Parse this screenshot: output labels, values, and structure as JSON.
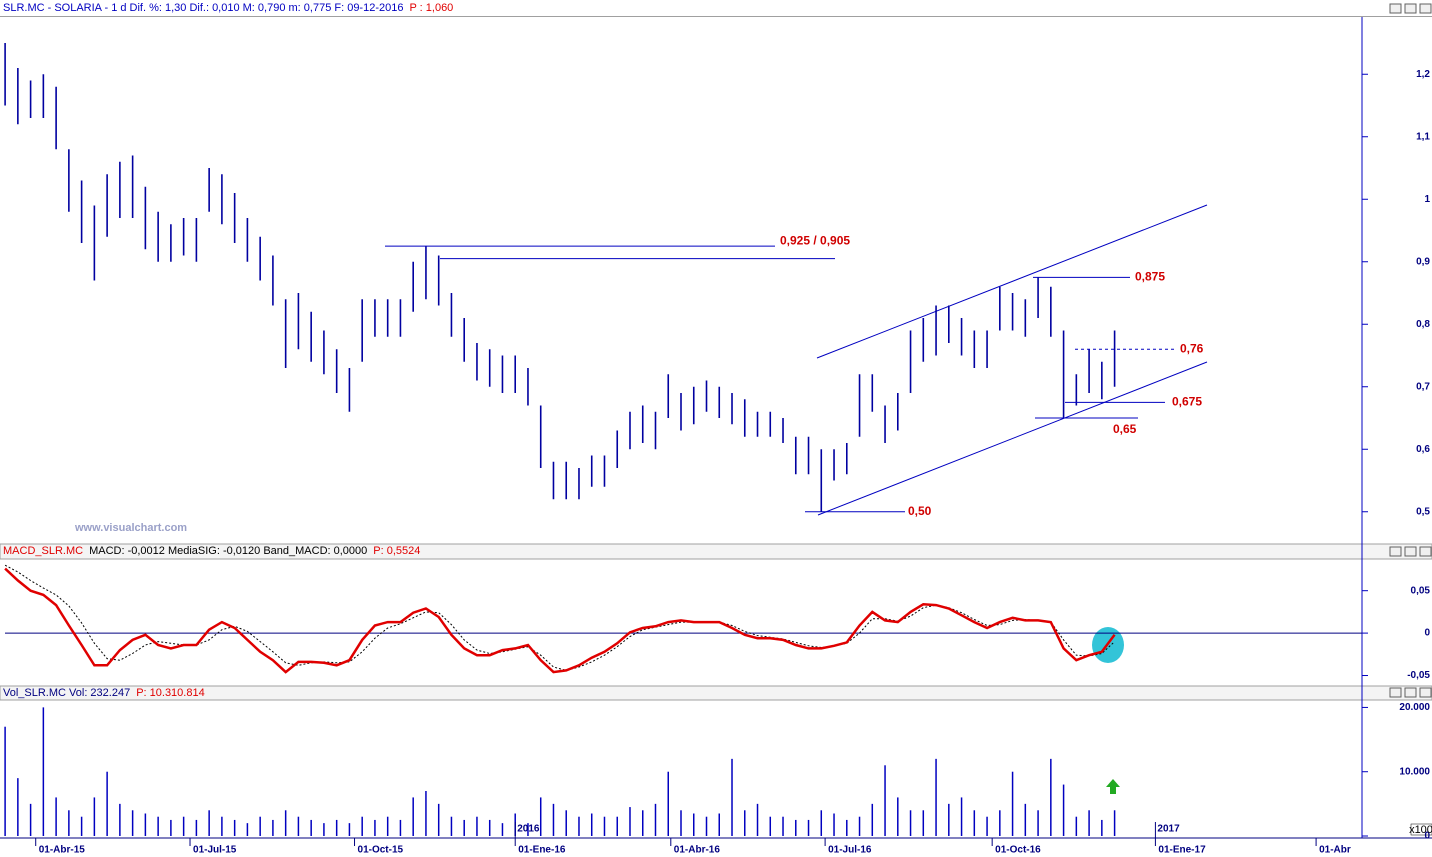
{
  "chart_data": [
    {
      "type": "range",
      "header": [
        {
          "text": "SLR.MC - SOLARIA - 1 d Dif. %: 1,30 Dif.: 0,010 M: 0,790 m: 0,775 F: 09-12-2016",
          "color": "#0000c0"
        },
        {
          "text": "P : 1,060",
          "color": "#e00000"
        }
      ],
      "watermark": "www.visualchart.com",
      "x": [
        0,
        5,
        10,
        15,
        20,
        25,
        30,
        35,
        40,
        45,
        50,
        55,
        60,
        65,
        70,
        75,
        80,
        85,
        90,
        95,
        100,
        105,
        110,
        115,
        120,
        125,
        130,
        135,
        140,
        145,
        150,
        155,
        160,
        165,
        170,
        175,
        180,
        185,
        190,
        195,
        200,
        205,
        210,
        215,
        220,
        225,
        230,
        235,
        240,
        245,
        250,
        255,
        260,
        265,
        270,
        275,
        280,
        285,
        290,
        295,
        300,
        305,
        310,
        315,
        320,
        325,
        330,
        335,
        340,
        345,
        350,
        355,
        360,
        365,
        370,
        375,
        380,
        385,
        390,
        395,
        400,
        405,
        410,
        415,
        420,
        425,
        430,
        435
      ],
      "xlim": [
        -2,
        532
      ],
      "xticks": [
        {
          "value": 12,
          "label": "01-Abr-15"
        },
        {
          "value": 72.5,
          "label": "01-Jul-15"
        },
        {
          "value": 137,
          "label": "01-Oct-15"
        },
        {
          "value": 200,
          "label": "01-Ene-16"
        },
        {
          "value": 261,
          "label": "01-Abr-16"
        },
        {
          "value": 321.5,
          "label": "01-Jul-16"
        },
        {
          "value": 387,
          "label": "01-Oct-16"
        },
        {
          "value": 451,
          "label": "01-Ene-17"
        },
        {
          "value": 514,
          "label": "01-Abr"
        }
      ],
      "ylim": [
        0.45,
        1.29
      ],
      "yticks": [
        {
          "value": 0.5,
          "label": "0,5"
        },
        {
          "value": 0.6,
          "label": "0,6"
        },
        {
          "value": 0.7,
          "label": "0,7"
        },
        {
          "value": 0.8,
          "label": "0,8"
        },
        {
          "value": 0.9,
          "label": "0,9"
        },
        1,
        {
          "value": 1.1,
          "label": "1,1"
        },
        {
          "value": 1.2,
          "label": "1,2"
        }
      ],
      "series": [
        {
          "color": "#0000a0",
          "high": [
            1.25,
            1.21,
            1.19,
            1.2,
            1.18,
            1.08,
            1.03,
            0.99,
            1.04,
            1.06,
            1.07,
            1.02,
            0.98,
            0.96,
            0.97,
            0.97,
            1.05,
            1.04,
            1.01,
            0.97,
            0.94,
            0.91,
            0.84,
            0.85,
            0.82,
            0.79,
            0.76,
            0.73,
            0.84,
            0.84,
            0.84,
            0.84,
            0.9,
            0.925,
            0.91,
            0.85,
            0.81,
            0.77,
            0.76,
            0.75,
            0.75,
            0.73,
            0.67,
            0.58,
            0.58,
            0.57,
            0.59,
            0.59,
            0.63,
            0.66,
            0.67,
            0.66,
            0.72,
            0.69,
            0.7,
            0.71,
            0.7,
            0.69,
            0.68,
            0.66,
            0.66,
            0.65,
            0.62,
            0.62,
            0.6,
            0.6,
            0.61,
            0.72,
            0.72,
            0.67,
            0.69,
            0.79,
            0.81,
            0.83,
            0.83,
            0.81,
            0.79,
            0.79,
            0.86,
            0.85,
            0.84,
            0.875,
            0.86,
            0.79,
            0.72,
            0.76,
            0.74,
            0.79
          ],
          "low": [
            1.15,
            1.12,
            1.13,
            1.13,
            1.08,
            0.98,
            0.93,
            0.87,
            0.94,
            0.97,
            0.97,
            0.92,
            0.9,
            0.9,
            0.91,
            0.9,
            0.98,
            0.96,
            0.93,
            0.9,
            0.87,
            0.83,
            0.73,
            0.76,
            0.74,
            0.72,
            0.69,
            0.66,
            0.74,
            0.78,
            0.78,
            0.78,
            0.82,
            0.84,
            0.83,
            0.78,
            0.74,
            0.71,
            0.7,
            0.69,
            0.69,
            0.67,
            0.57,
            0.52,
            0.52,
            0.52,
            0.54,
            0.54,
            0.57,
            0.6,
            0.61,
            0.6,
            0.65,
            0.63,
            0.64,
            0.66,
            0.65,
            0.64,
            0.62,
            0.62,
            0.62,
            0.61,
            0.56,
            0.56,
            0.5,
            0.55,
            0.56,
            0.62,
            0.66,
            0.61,
            0.63,
            0.69,
            0.74,
            0.75,
            0.77,
            0.75,
            0.73,
            0.73,
            0.79,
            0.79,
            0.78,
            0.81,
            0.78,
            0.65,
            0.67,
            0.69,
            0.68,
            0.7
          ]
        }
      ],
      "annotation_color": "#d00000",
      "annotations": [
        {
          "label": "0,925 / 0,905",
          "values": [
            0.925,
            0.905
          ]
        },
        {
          "label": "0,875",
          "values": [
            0.875
          ]
        },
        {
          "label": "0,76",
          "values": [
            0.76
          ]
        },
        {
          "label": "0,675",
          "values": [
            0.675
          ]
        },
        {
          "label": "0,65",
          "values": [
            0.65
          ]
        },
        {
          "label": "0,50",
          "values": [
            0.5
          ]
        }
      ]
    },
    {
      "type": "line",
      "header": [
        {
          "text": "MACD_SLR.MC",
          "color": "#e00000"
        },
        {
          "text": "MACD: -0,0012 MediaSIG: -0,0120 Band_MACD: 0,0000",
          "color": "#000000"
        },
        {
          "text": "P: 0,5524",
          "color": "#e00000"
        }
      ],
      "ylim": [
        -0.06,
        0.085
      ],
      "yticks": [
        {
          "value": -0.05,
          "label": "-0,05"
        },
        0,
        {
          "value": 0.05,
          "label": "0,05"
        }
      ],
      "reference_line": 0,
      "series": [
        {
          "color": "#e00000",
          "dash": false,
          "values": [
            0.076,
            0.062,
            0.05,
            0.045,
            0.033,
            0.009,
            -0.014,
            -0.038,
            -0.038,
            -0.02,
            -0.008,
            -0.002,
            -0.014,
            -0.018,
            -0.014,
            -0.014,
            0.004,
            0.013,
            0.006,
            -0.008,
            -0.022,
            -0.032,
            -0.046,
            -0.034,
            -0.034,
            -0.035,
            -0.038,
            -0.032,
            -0.008,
            0.009,
            0.013,
            0.013,
            0.024,
            0.029,
            0.019,
            -0.002,
            -0.018,
            -0.026,
            -0.026,
            -0.02,
            -0.018,
            -0.014,
            -0.032,
            -0.046,
            -0.044,
            -0.038,
            -0.029,
            -0.022,
            -0.012,
            0.001,
            0.006,
            0.008,
            0.013,
            0.015,
            0.013,
            0.013,
            0.013,
            0.006,
            -0.002,
            -0.006,
            -0.006,
            -0.008,
            -0.014,
            -0.018,
            -0.018,
            -0.015,
            -0.011,
            0.009,
            0.025,
            0.015,
            0.013,
            0.025,
            0.034,
            0.033,
            0.029,
            0.021,
            0.013,
            0.006,
            0.013,
            0.018,
            0.015,
            0.015,
            0.013,
            -0.018,
            -0.032,
            -0.026,
            -0.022,
            -0.002
          ]
        },
        {
          "color": "#000000",
          "dash": true,
          "values": [
            0.08,
            0.072,
            0.062,
            0.053,
            0.045,
            0.032,
            0.012,
            -0.012,
            -0.03,
            -0.032,
            -0.024,
            -0.014,
            -0.01,
            -0.012,
            -0.014,
            -0.014,
            -0.008,
            0.004,
            0.008,
            0.002,
            -0.01,
            -0.022,
            -0.035,
            -0.038,
            -0.035,
            -0.034,
            -0.035,
            -0.034,
            -0.022,
            -0.006,
            0.006,
            0.011,
            0.018,
            0.025,
            0.024,
            0.01,
            -0.008,
            -0.02,
            -0.024,
            -0.022,
            -0.019,
            -0.016,
            -0.026,
            -0.04,
            -0.044,
            -0.04,
            -0.034,
            -0.026,
            -0.016,
            -0.004,
            0.004,
            0.007,
            0.01,
            0.013,
            0.013,
            0.013,
            0.013,
            0.009,
            0.002,
            -0.003,
            -0.005,
            -0.007,
            -0.011,
            -0.015,
            -0.017,
            -0.015,
            -0.012,
            0,
            0.017,
            0.017,
            0.014,
            0.02,
            0.03,
            0.033,
            0.03,
            0.024,
            0.016,
            0.009,
            0.01,
            0.015,
            0.016,
            0.015,
            0.013,
            -0.008,
            -0.026,
            -0.027,
            -0.024,
            -0.01
          ]
        }
      ]
    },
    {
      "type": "bar",
      "header": [
        {
          "text": "Vol_SLR.MC Vol: 232.247",
          "color": "#000080"
        },
        {
          "text": "P: 10.310.814",
          "color": "#e00000"
        }
      ],
      "ylim": [
        0,
        21000
      ],
      "yticks": [
        0,
        {
          "value": 10000,
          "label": "10.000"
        },
        {
          "value": 20000,
          "label": "20.000"
        }
      ],
      "unit_label": "x100",
      "year_labels": [
        {
          "value": 200,
          "label": "2016"
        },
        {
          "value": 451,
          "label": "2017"
        }
      ],
      "color": "#0000c0",
      "values": [
        17000,
        9000,
        5000,
        20000,
        6000,
        4000,
        3000,
        6000,
        10000,
        5000,
        4000,
        3500,
        3000,
        2500,
        3000,
        2500,
        4000,
        3000,
        2500,
        2000,
        3000,
        2500,
        4000,
        3000,
        2500,
        2000,
        2500,
        2000,
        3000,
        2500,
        3000,
        2500,
        6000,
        7000,
        5000,
        3000,
        2500,
        3000,
        2500,
        2000,
        3500,
        2000,
        6000,
        5000,
        4000,
        3000,
        3500,
        3000,
        3000,
        4500,
        4000,
        5000,
        10000,
        4000,
        3500,
        3000,
        3500,
        12000,
        4000,
        5000,
        3000,
        3000,
        2500,
        2500,
        4000,
        3500,
        2500,
        3000,
        5000,
        11000,
        6000,
        4000,
        4000,
        12000,
        5000,
        6000,
        4000,
        3000,
        4000,
        10000,
        5000,
        4000,
        12000,
        8000,
        3000,
        4000,
        2500,
        4000
      ]
    }
  ]
}
